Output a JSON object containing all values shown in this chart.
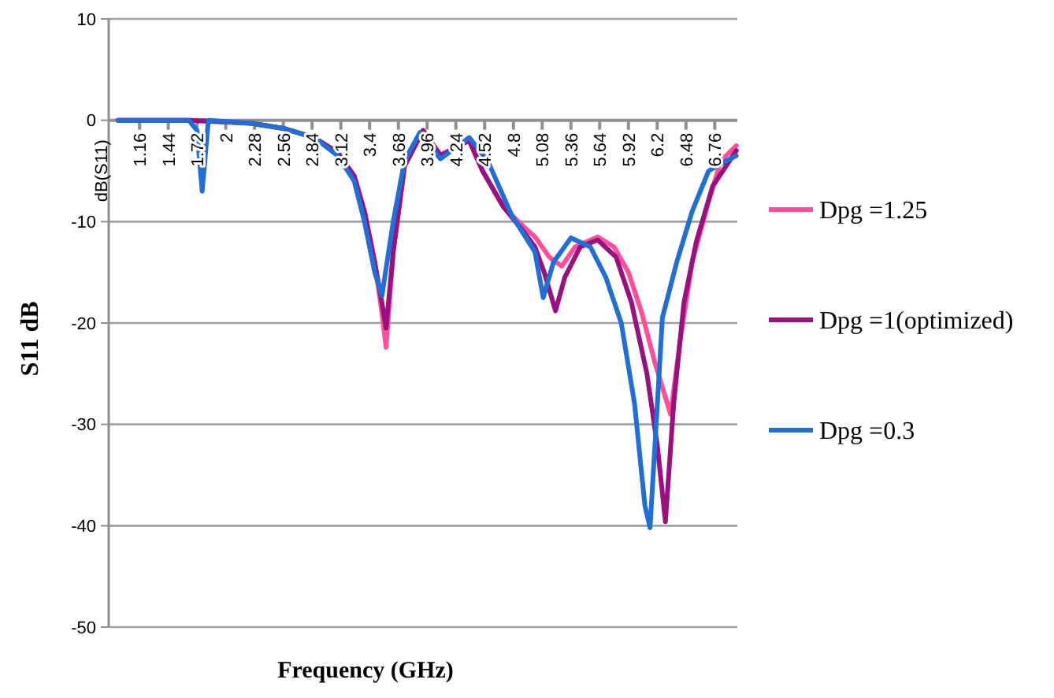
{
  "chart_data": {
    "type": "line",
    "xlabel": "Frequency (GHz)",
    "ylabel": "S11 dB",
    "annotations": [
      "dB(S11)"
    ],
    "xlim": [
      0.86,
      6.98
    ],
    "xticks": [
      1.16,
      1.44,
      1.72,
      2,
      2.28,
      2.56,
      2.84,
      3.12,
      3.4,
      3.68,
      3.96,
      4.24,
      4.52,
      4.8,
      5.08,
      5.36,
      5.64,
      5.92,
      6.2,
      6.48,
      6.76
    ],
    "ylim": [
      -50,
      10
    ],
    "yticks": [
      10,
      0,
      -10,
      -20,
      -30,
      -40,
      -50
    ],
    "grid": "y",
    "legend": "right",
    "line_style": "solid",
    "marker": "none",
    "series": [
      {
        "name": "Dpg =1.25",
        "color": "#ff4f9a",
        "x": [
          0.95,
          1.64,
          2.25,
          2.56,
          2.86,
          3.09,
          3.25,
          3.35,
          3.45,
          3.52,
          3.56,
          3.63,
          3.74,
          3.92,
          4.09,
          4.37,
          4.5,
          4.7,
          4.9,
          5.01,
          5.15,
          5.27,
          5.4,
          5.62,
          5.78,
          5.92,
          6.05,
          6.18,
          6.33,
          6.42,
          6.54,
          6.7,
          6.82,
          6.97
        ],
        "values": [
          0,
          0,
          -0.3,
          -0.8,
          -1.7,
          -3.2,
          -5.5,
          -9,
          -14,
          -19,
          -22.4,
          -13,
          -4.5,
          -1,
          -3.4,
          -2,
          -5,
          -8.5,
          -10.5,
          -11.5,
          -13.5,
          -14.4,
          -12.5,
          -11.5,
          -12.5,
          -15,
          -19,
          -24,
          -29,
          -22,
          -14,
          -8,
          -4,
          -2.5
        ]
      },
      {
        "name": "Dpg =1(optimized)",
        "color": "#99117f",
        "x": [
          0.95,
          1.64,
          2.25,
          2.56,
          2.86,
          3.09,
          3.25,
          3.35,
          3.45,
          3.52,
          3.56,
          3.63,
          3.74,
          3.92,
          4.09,
          4.37,
          4.5,
          4.7,
          4.9,
          5.01,
          5.1,
          5.21,
          5.3,
          5.45,
          5.62,
          5.8,
          5.95,
          6.1,
          6.2,
          6.28,
          6.36,
          6.46,
          6.58,
          6.74,
          6.97
        ],
        "values": [
          0,
          0,
          -0.3,
          -0.8,
          -1.7,
          -3.2,
          -5.5,
          -9,
          -14,
          -18,
          -20.5,
          -13,
          -4.5,
          -1,
          -3.5,
          -2,
          -5,
          -8.5,
          -11,
          -12.5,
          -15,
          -18.8,
          -15.5,
          -12.5,
          -11.8,
          -13.5,
          -18,
          -25,
          -32,
          -39.6,
          -28,
          -18,
          -12,
          -6.5,
          -3
        ]
      },
      {
        "name": "Dpg =0.3",
        "color": "#1f6fd6",
        "x": [
          0.95,
          1.64,
          1.72,
          1.77,
          1.83,
          2.25,
          2.56,
          2.86,
          3.09,
          3.25,
          3.35,
          3.45,
          3.52,
          3.63,
          3.74,
          3.89,
          4.09,
          4.37,
          4.55,
          4.78,
          5.01,
          5.09,
          5.19,
          5.36,
          5.55,
          5.7,
          5.85,
          5.98,
          6.08,
          6.13,
          6.19,
          6.25,
          6.39,
          6.54,
          6.7,
          6.82,
          6.97
        ],
        "values": [
          0,
          0,
          -1,
          -7,
          0,
          -0.3,
          -0.8,
          -1.7,
          -3.5,
          -6,
          -10,
          -15,
          -17.3,
          -10,
          -4,
          -1.2,
          -3.8,
          -1.7,
          -4,
          -9.3,
          -13,
          -17.5,
          -14,
          -11.6,
          -12.5,
          -15.5,
          -20,
          -28,
          -38,
          -40.2,
          -30,
          -19.5,
          -14,
          -9,
          -5,
          -4.3,
          -3.5
        ]
      }
    ]
  }
}
